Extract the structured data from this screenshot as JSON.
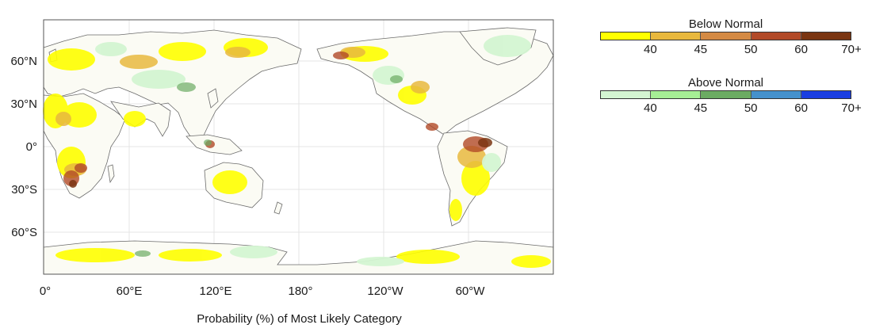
{
  "map": {
    "lat_labels": [
      "60°N",
      "30°N",
      "0°",
      "30°S",
      "60°S"
    ],
    "lon_labels": [
      "0°",
      "60°E",
      "120°E",
      "180°",
      "120°W",
      "60°W"
    ],
    "caption": "Probability (%) of Most Likely Category"
  },
  "legends": [
    {
      "title": "Below Normal",
      "colors": [
        "#ffff00",
        "#e8b83e",
        "#d48a44",
        "#b24a28",
        "#7a3512"
      ],
      "ticks": [
        "40",
        "45",
        "50",
        "60",
        "70+"
      ]
    },
    {
      "title": "Above Normal",
      "colors": [
        "#d4f5d2",
        "#a6ee95",
        "#6bab62",
        "#4591cc",
        "#1a3ee0"
      ],
      "ticks": [
        "40",
        "45",
        "50",
        "60",
        "70+"
      ]
    }
  ]
}
